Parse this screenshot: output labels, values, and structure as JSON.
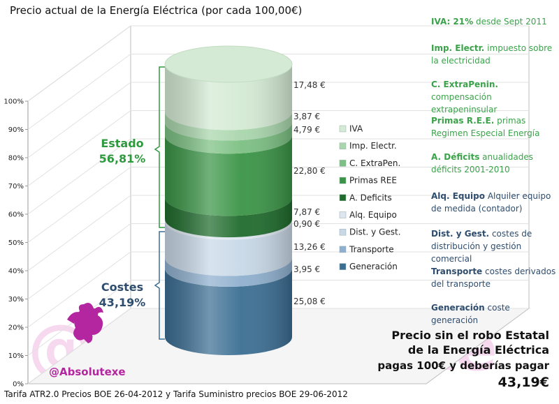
{
  "title": "Precio actual de la Energía Eléctrica (por cada 100,00€)",
  "footer": "Tarifa ATR2.0 Precios BOE 26-04-2012 y Tarifa Suministro precios BOE 29-06-2012",
  "handle": "@Absolutexe",
  "watermark_text": "@Absolutexe",
  "bottom_note": {
    "line1": "Precio sin el robo Estatal",
    "line2": "de la Energía Eléctrica",
    "line3_text": "pagas 100€ y deberías pagar",
    "line3_amount": "43,19€"
  },
  "groups": {
    "estado": {
      "name": "Estado",
      "pct": "56,81%",
      "color": "#2e9a3e"
    },
    "costes": {
      "name": "Costes",
      "pct": "43,19%",
      "color": "#2f4d6e"
    }
  },
  "notes": [
    {
      "term": "IVA: 21%",
      "desc": " desde Sept 2011",
      "color": "#3aa34a"
    },
    {
      "term": "Imp. Electr.",
      "desc": "  impuesto sobre la electricidad",
      "color": "#3aa34a"
    },
    {
      "term": "C. ExtraPenin.",
      "desc": " compensación extrapeninsular",
      "color": "#3aa34a"
    },
    {
      "term": "Primas R.E.E.",
      "desc": " primas Regimen Especial Energía",
      "color": "#3aa34a"
    },
    {
      "term": "A. Déficits",
      "desc": " anualidades déficits 2001-2010",
      "color": "#3aa34a"
    },
    {
      "term": "Alq. Equipo",
      "desc": "  Alquiler equipo de medida (contador)",
      "color": "#2f4d6e"
    },
    {
      "term": "Dist. y Gest.",
      "desc": " costes de distribución y gestión comercial",
      "color": "#2f4d6e"
    },
    {
      "term": "Transporte",
      "desc": " costes derivados del transporte",
      "color": "#2f4d6e"
    },
    {
      "term": "Generación",
      "desc": " coste generación",
      "color": "#2f4d6e"
    }
  ],
  "chart_data": {
    "type": "bar",
    "stacked": true,
    "categories": [
      ""
    ],
    "yticks": [
      "0%",
      "10%",
      "20%",
      "30%",
      "40%",
      "50%",
      "60%",
      "70%",
      "80%",
      "90%",
      "100%"
    ],
    "ylim": [
      0,
      100
    ],
    "series": [
      {
        "name": "Generación",
        "value": 25.08,
        "label": "25,08 €",
        "color": "#3b6e93"
      },
      {
        "name": "Transporte",
        "value": 3.95,
        "label": "3,95 €",
        "color": "#8fb0cf"
      },
      {
        "name": "Dist. y Gest.",
        "value": 13.26,
        "label": "13,26 €",
        "color": "#c8d8e7"
      },
      {
        "name": "Alq. Equipo",
        "value": 0.9,
        "label": "0,90 €",
        "color": "#dde6ef"
      },
      {
        "name": "A. Deficits",
        "value": 7.87,
        "label": "7,87 €",
        "color": "#1f6b2c"
      },
      {
        "name": "Primas REE",
        "value": 22.8,
        "label": "22,80 €",
        "color": "#3a9446"
      },
      {
        "name": "C. ExtraPen.",
        "value": 4.79,
        "label": "4,79 €",
        "color": "#7cc083"
      },
      {
        "name": "Imp. Electr.",
        "value": 3.87,
        "label": "3,87 €",
        "color": "#a9d6ac"
      },
      {
        "name": "IVA",
        "value": 17.48,
        "label": "17,48 €",
        "color": "#d4ead4"
      }
    ],
    "legend_order": [
      "IVA",
      "Imp. Electr.",
      "C. ExtraPen.",
      "Primas REE",
      "A. Deficits",
      "Alq. Equipo",
      "Dist. y Gest.",
      "Transporte",
      "Generación"
    ],
    "grid": true,
    "legend_position": "right"
  }
}
